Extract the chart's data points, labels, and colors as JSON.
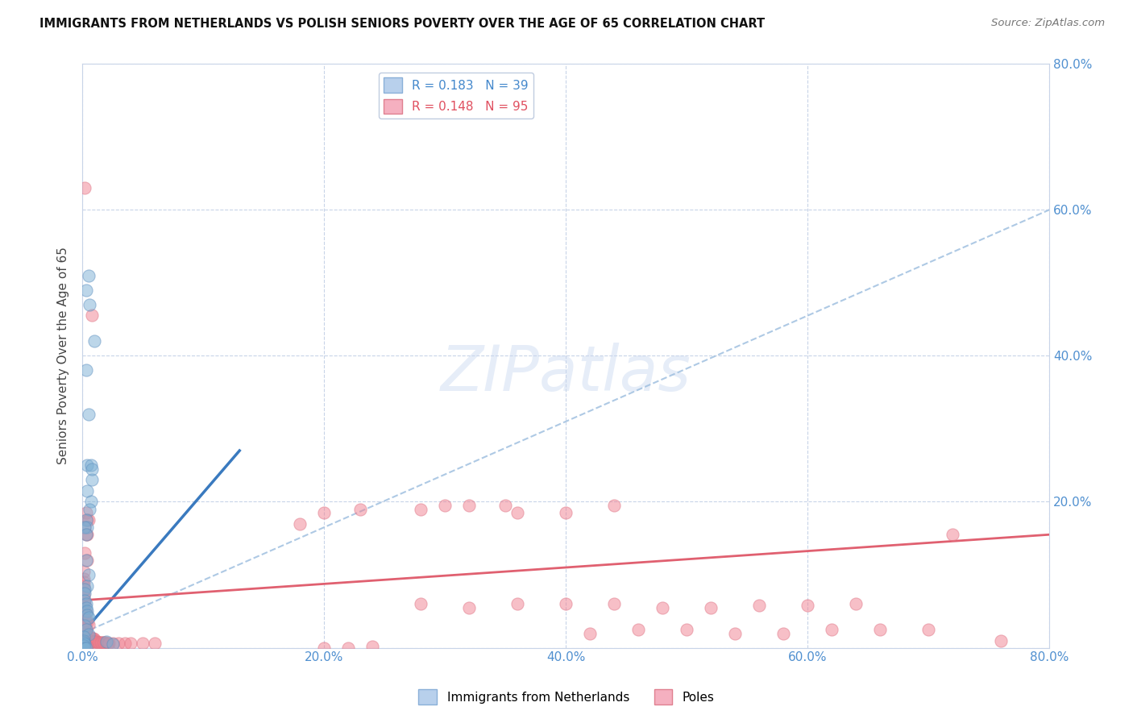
{
  "title": "IMMIGRANTS FROM NETHERLANDS VS POLISH SENIORS POVERTY OVER THE AGE OF 65 CORRELATION CHART",
  "source": "Source: ZipAtlas.com",
  "ylabel": "Seniors Poverty Over the Age of 65",
  "xlim": [
    0.0,
    0.8
  ],
  "ylim": [
    0.0,
    0.8
  ],
  "xticks": [
    0.0,
    0.2,
    0.4,
    0.6,
    0.8
  ],
  "yticks": [
    0.0,
    0.2,
    0.4,
    0.6,
    0.8
  ],
  "xtick_labels": [
    "0.0%",
    "20.0%",
    "40.0%",
    "60.0%",
    "80.0%"
  ],
  "ytick_labels": [
    "",
    "20.0%",
    "40.0%",
    "60.0%",
    "80.0%"
  ],
  "background_color": "#ffffff",
  "grid_color": "#c8d4e8",
  "blue_color": "#7bafd4",
  "pink_color": "#f08090",
  "blue_line_solid": [
    [
      0.0,
      0.02
    ],
    [
      0.13,
      0.27
    ]
  ],
  "blue_line_dashed": [
    [
      0.0,
      0.02
    ],
    [
      0.8,
      0.6
    ]
  ],
  "pink_line": [
    [
      0.0,
      0.065
    ],
    [
      0.8,
      0.155
    ]
  ],
  "blue_scatter": [
    [
      0.003,
      0.49
    ],
    [
      0.005,
      0.51
    ],
    [
      0.01,
      0.42
    ],
    [
      0.006,
      0.47
    ],
    [
      0.003,
      0.38
    ],
    [
      0.005,
      0.32
    ],
    [
      0.004,
      0.25
    ],
    [
      0.008,
      0.23
    ],
    [
      0.004,
      0.215
    ],
    [
      0.007,
      0.2
    ],
    [
      0.006,
      0.19
    ],
    [
      0.003,
      0.175
    ],
    [
      0.004,
      0.165
    ],
    [
      0.007,
      0.25
    ],
    [
      0.008,
      0.245
    ],
    [
      0.002,
      0.165
    ],
    [
      0.003,
      0.155
    ],
    [
      0.003,
      0.12
    ],
    [
      0.005,
      0.1
    ],
    [
      0.004,
      0.085
    ],
    [
      0.002,
      0.08
    ],
    [
      0.002,
      0.075
    ],
    [
      0.002,
      0.065
    ],
    [
      0.003,
      0.06
    ],
    [
      0.003,
      0.055
    ],
    [
      0.004,
      0.05
    ],
    [
      0.004,
      0.045
    ],
    [
      0.005,
      0.042
    ],
    [
      0.002,
      0.03
    ],
    [
      0.003,
      0.025
    ],
    [
      0.005,
      0.018
    ],
    [
      0.001,
      0.015
    ],
    [
      0.001,
      0.01
    ],
    [
      0.001,
      0.007
    ],
    [
      0.002,
      0.005
    ],
    [
      0.001,
      0.003
    ],
    [
      0.02,
      0.008
    ],
    [
      0.025,
      0.005
    ],
    [
      0.002,
      0.0
    ],
    [
      0.003,
      0.0
    ]
  ],
  "pink_scatter": [
    [
      0.002,
      0.63
    ],
    [
      0.008,
      0.455
    ],
    [
      0.003,
      0.185
    ],
    [
      0.004,
      0.175
    ],
    [
      0.002,
      0.165
    ],
    [
      0.005,
      0.175
    ],
    [
      0.003,
      0.155
    ],
    [
      0.004,
      0.155
    ],
    [
      0.002,
      0.13
    ],
    [
      0.004,
      0.12
    ],
    [
      0.001,
      0.105
    ],
    [
      0.001,
      0.095
    ],
    [
      0.001,
      0.09
    ],
    [
      0.001,
      0.085
    ],
    [
      0.001,
      0.08
    ],
    [
      0.001,
      0.075
    ],
    [
      0.001,
      0.07
    ],
    [
      0.001,
      0.065
    ],
    [
      0.002,
      0.06
    ],
    [
      0.001,
      0.055
    ],
    [
      0.001,
      0.05
    ],
    [
      0.002,
      0.05
    ],
    [
      0.003,
      0.048
    ],
    [
      0.002,
      0.042
    ],
    [
      0.003,
      0.038
    ],
    [
      0.004,
      0.035
    ],
    [
      0.005,
      0.032
    ],
    [
      0.002,
      0.028
    ],
    [
      0.003,
      0.025
    ],
    [
      0.003,
      0.022
    ],
    [
      0.002,
      0.02
    ],
    [
      0.002,
      0.018
    ],
    [
      0.004,
      0.018
    ],
    [
      0.003,
      0.015
    ],
    [
      0.004,
      0.015
    ],
    [
      0.005,
      0.015
    ],
    [
      0.006,
      0.015
    ],
    [
      0.007,
      0.014
    ],
    [
      0.008,
      0.013
    ],
    [
      0.009,
      0.013
    ],
    [
      0.01,
      0.012
    ],
    [
      0.001,
      0.012
    ],
    [
      0.002,
      0.01
    ],
    [
      0.003,
      0.01
    ],
    [
      0.004,
      0.01
    ],
    [
      0.005,
      0.009
    ],
    [
      0.006,
      0.009
    ],
    [
      0.007,
      0.009
    ],
    [
      0.008,
      0.008
    ],
    [
      0.009,
      0.008
    ],
    [
      0.01,
      0.008
    ],
    [
      0.011,
      0.008
    ],
    [
      0.012,
      0.008
    ],
    [
      0.013,
      0.007
    ],
    [
      0.014,
      0.007
    ],
    [
      0.015,
      0.007
    ],
    [
      0.016,
      0.007
    ],
    [
      0.017,
      0.007
    ],
    [
      0.018,
      0.007
    ],
    [
      0.019,
      0.007
    ],
    [
      0.02,
      0.006
    ],
    [
      0.021,
      0.006
    ],
    [
      0.022,
      0.006
    ],
    [
      0.025,
      0.006
    ],
    [
      0.03,
      0.006
    ],
    [
      0.035,
      0.006
    ],
    [
      0.04,
      0.006
    ],
    [
      0.05,
      0.006
    ],
    [
      0.06,
      0.006
    ],
    [
      0.001,
      0.005
    ],
    [
      0.001,
      0.004
    ],
    [
      0.002,
      0.004
    ],
    [
      0.002,
      0.003
    ],
    [
      0.003,
      0.003
    ],
    [
      0.003,
      0.002
    ],
    [
      0.001,
      0.002
    ],
    [
      0.004,
      0.002
    ],
    [
      0.001,
      0.001
    ],
    [
      0.2,
      0.0
    ],
    [
      0.22,
      0.0
    ],
    [
      0.24,
      0.002
    ],
    [
      0.18,
      0.17
    ],
    [
      0.2,
      0.185
    ],
    [
      0.23,
      0.19
    ],
    [
      0.28,
      0.19
    ],
    [
      0.32,
      0.195
    ],
    [
      0.36,
      0.185
    ],
    [
      0.3,
      0.195
    ],
    [
      0.35,
      0.195
    ],
    [
      0.4,
      0.185
    ],
    [
      0.44,
      0.195
    ],
    [
      0.28,
      0.06
    ],
    [
      0.32,
      0.055
    ],
    [
      0.36,
      0.06
    ],
    [
      0.4,
      0.06
    ],
    [
      0.44,
      0.06
    ],
    [
      0.48,
      0.055
    ],
    [
      0.52,
      0.055
    ],
    [
      0.56,
      0.058
    ],
    [
      0.6,
      0.058
    ],
    [
      0.64,
      0.06
    ],
    [
      0.42,
      0.02
    ],
    [
      0.46,
      0.025
    ],
    [
      0.5,
      0.025
    ],
    [
      0.54,
      0.02
    ],
    [
      0.58,
      0.02
    ],
    [
      0.62,
      0.025
    ],
    [
      0.66,
      0.025
    ],
    [
      0.7,
      0.025
    ],
    [
      0.72,
      0.155
    ],
    [
      0.76,
      0.01
    ]
  ]
}
